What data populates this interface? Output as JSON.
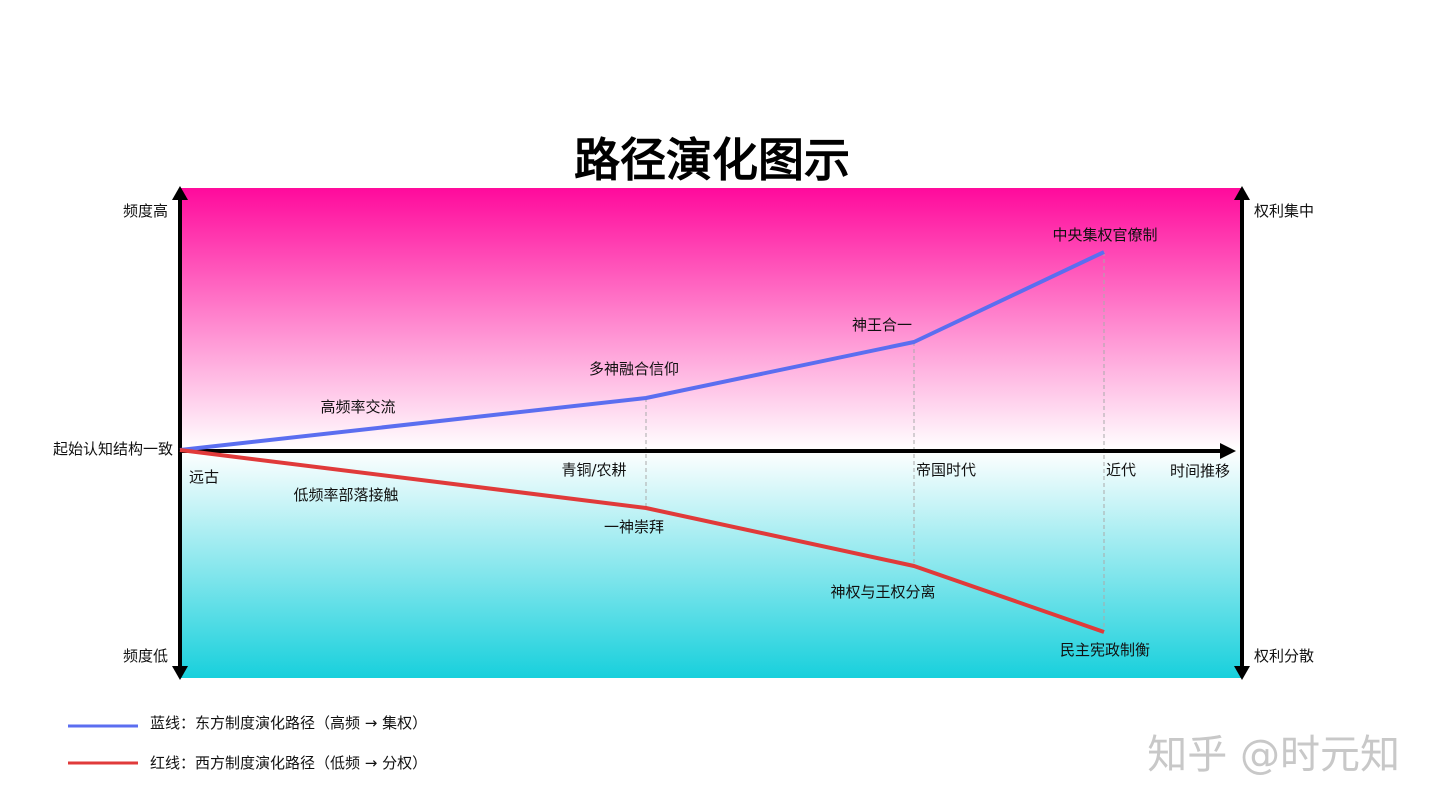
{
  "title": "路径演化图示",
  "axes": {
    "left_top": "频度高",
    "left_bottom": "频度低",
    "right_top": "权利集中",
    "right_bottom": "权利分散",
    "origin": "起始认知结构一致",
    "time_axis": "时间推移"
  },
  "time_points": [
    "远古",
    "青铜/农耕",
    "帝国时代",
    "近代"
  ],
  "blue_path": {
    "segment_label": "高频率交流",
    "nodes": [
      "多神融合信仰",
      "神王合一",
      "中央集权官僚制"
    ]
  },
  "red_path": {
    "segment_label": "低频率部落接触",
    "nodes": [
      "一神崇拜",
      "神权与王权分离",
      "民主宪政制衡"
    ]
  },
  "legend": [
    {
      "label": "蓝线：东方制度演化路径（高频 → 集权）",
      "color": "#5b6ef0"
    },
    {
      "label": "红线：西方制度演化路径（低频 → 分权）",
      "color": "#e03a3a"
    }
  ],
  "colors": {
    "top_gradient": "#ff0a9c",
    "bottom_gradient": "#18d0dc",
    "blue": "#5b6ef0",
    "red": "#e03a3a",
    "axis": "#000000"
  },
  "watermark": "知乎 @时元知"
}
